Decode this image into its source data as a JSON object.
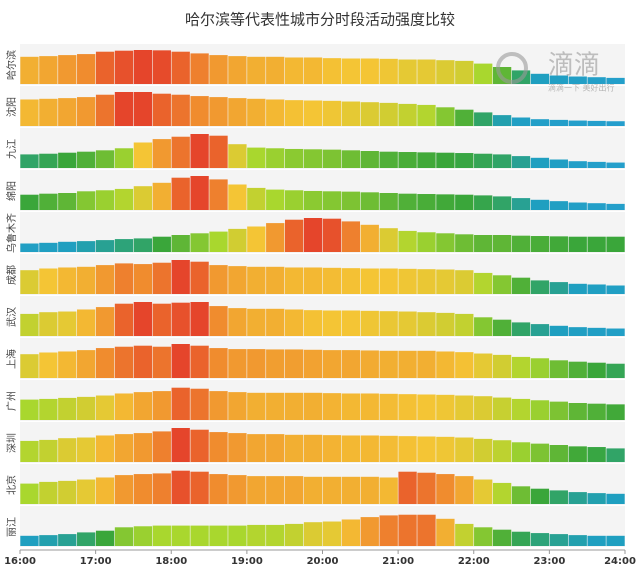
{
  "chart_data": {
    "type": "heat-bar",
    "title": "哈尔滨等代表性城市分时段活动强度比较",
    "watermark": {
      "brand": "滴滴",
      "slogan": "滴滴一下 美好出行"
    },
    "xlim": [
      16,
      24
    ],
    "xticks": [
      {
        "value": 16,
        "label": "16:00"
      },
      {
        "value": 17,
        "label": "17:00"
      },
      {
        "value": 18,
        "label": "18:00"
      },
      {
        "value": 19,
        "label": "19:00"
      },
      {
        "value": 20,
        "label": "20:00"
      },
      {
        "value": 21,
        "label": "21:00"
      },
      {
        "value": 22,
        "label": "22:00"
      },
      {
        "value": 23,
        "label": "23:00"
      },
      {
        "value": 24,
        "label": "24:00"
      }
    ],
    "ylim": [
      0,
      100
    ],
    "colormap": [
      [
        0,
        "#2b9ed8"
      ],
      [
        0.3,
        "#1f9fc0"
      ],
      [
        0.45,
        "#3aa63a"
      ],
      [
        0.6,
        "#a9d72e"
      ],
      [
        0.75,
        "#f4c535"
      ],
      [
        0.88,
        "#f08c2e"
      ],
      [
        1,
        "#e5452b"
      ]
    ],
    "x": [
      16,
      16.25,
      16.5,
      16.75,
      17,
      17.25,
      17.5,
      17.75,
      18,
      18.25,
      18.5,
      18.75,
      19,
      19.25,
      19.5,
      19.75,
      20,
      20.25,
      20.5,
      20.75,
      21,
      21.25,
      21.5,
      21.75,
      22,
      22.25,
      22.5,
      22.75,
      23,
      23.25,
      23.5,
      23.75
    ],
    "series": [
      {
        "name": "哈尔滨",
        "values": [
          80,
          82,
          85,
          88,
          95,
          98,
          100,
          99,
          95,
          90,
          85,
          82,
          80,
          80,
          78,
          78,
          76,
          75,
          75,
          74,
          72,
          72,
          70,
          68,
          60,
          50,
          40,
          30,
          25,
          22,
          20,
          18
        ]
      },
      {
        "name": "沈阳",
        "values": [
          78,
          80,
          82,
          85,
          92,
          100,
          100,
          95,
          92,
          88,
          85,
          82,
          80,
          78,
          76,
          75,
          74,
          72,
          70,
          68,
          65,
          62,
          55,
          48,
          40,
          32,
          25,
          20,
          18,
          16,
          15,
          14
        ]
      },
      {
        "name": "九江",
        "values": [
          40,
          42,
          45,
          48,
          52,
          58,
          75,
          85,
          92,
          100,
          95,
          70,
          60,
          58,
          56,
          55,
          54,
          52,
          50,
          48,
          47,
          46,
          45,
          44,
          42,
          40,
          35,
          30,
          25,
          20,
          18,
          16
        ]
      },
      {
        "name": "绵阳",
        "values": [
          45,
          48,
          50,
          55,
          58,
          62,
          70,
          80,
          95,
          100,
          90,
          75,
          65,
          60,
          58,
          56,
          55,
          54,
          52,
          50,
          48,
          47,
          46,
          45,
          43,
          40,
          35,
          30,
          26,
          22,
          20,
          18
        ]
      },
      {
        "name": "乌鲁木齐",
        "values": [
          25,
          27,
          30,
          32,
          35,
          38,
          40,
          45,
          50,
          55,
          60,
          68,
          75,
          85,
          95,
          100,
          98,
          90,
          80,
          70,
          62,
          58,
          55,
          52,
          50,
          50,
          48,
          47,
          46,
          45,
          45,
          45
        ]
      },
      {
        "name": "成都",
        "values": [
          70,
          75,
          78,
          80,
          85,
          90,
          88,
          92,
          100,
          95,
          85,
          82,
          80,
          80,
          78,
          78,
          77,
          76,
          75,
          75,
          74,
          73,
          72,
          70,
          62,
          55,
          48,
          40,
          35,
          30,
          28,
          25
        ]
      },
      {
        "name": "武汉",
        "values": [
          65,
          70,
          72,
          78,
          85,
          95,
          100,
          95,
          98,
          100,
          88,
          82,
          80,
          80,
          78,
          76,
          75,
          75,
          74,
          73,
          72,
          70,
          68,
          65,
          55,
          48,
          40,
          35,
          30,
          26,
          24,
          22
        ]
      },
      {
        "name": "上海",
        "values": [
          70,
          75,
          78,
          82,
          88,
          92,
          95,
          92,
          100,
          95,
          88,
          85,
          85,
          84,
          84,
          83,
          82,
          82,
          81,
          80,
          80,
          80,
          78,
          76,
          72,
          68,
          62,
          58,
          52,
          48,
          45,
          42
        ]
      },
      {
        "name": "广州",
        "values": [
          60,
          62,
          65,
          68,
          72,
          78,
          82,
          85,
          95,
          92,
          85,
          82,
          80,
          80,
          80,
          80,
          79,
          78,
          78,
          77,
          76,
          75,
          74,
          72,
          70,
          66,
          62,
          58,
          54,
          50,
          48,
          46
        ]
      },
      {
        "name": "深圳",
        "values": [
          62,
          65,
          70,
          72,
          78,
          82,
          85,
          90,
          100,
          95,
          88,
          85,
          82,
          82,
          80,
          80,
          79,
          78,
          78,
          77,
          76,
          75,
          74,
          72,
          68,
          64,
          58,
          54,
          50,
          46,
          44,
          40
        ]
      },
      {
        "name": "北京",
        "values": [
          60,
          65,
          68,
          72,
          78,
          85,
          88,
          90,
          98,
          95,
          88,
          85,
          82,
          82,
          82,
          80,
          80,
          80,
          80,
          78,
          95,
          92,
          88,
          82,
          72,
          62,
          52,
          45,
          40,
          35,
          32,
          30
        ]
      },
      {
        "name": "丽江",
        "values": [
          30,
          32,
          35,
          40,
          45,
          55,
          58,
          60,
          60,
          60,
          60,
          60,
          62,
          62,
          65,
          70,
          72,
          78,
          85,
          90,
          92,
          92,
          80,
          65,
          55,
          48,
          42,
          38,
          35,
          32,
          30,
          30
        ]
      }
    ]
  }
}
